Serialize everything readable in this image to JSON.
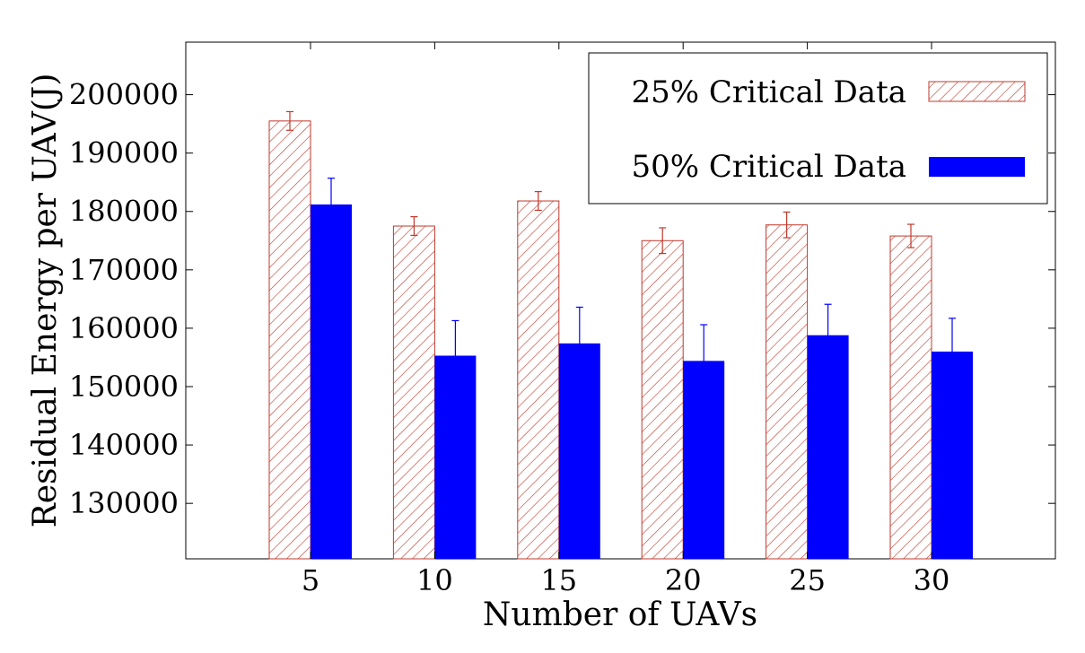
{
  "chart_data": {
    "type": "bar",
    "title": "",
    "xlabel": "Number of UAVs",
    "ylabel": "Residual Energy per UAV(J)",
    "categories": [
      "5",
      "10",
      "15",
      "20",
      "25",
      "30"
    ],
    "ylim": [
      120500,
      209000
    ],
    "yticks": [
      "130000",
      "140000",
      "150000",
      "160000",
      "170000",
      "180000",
      "190000",
      "200000"
    ],
    "grid": false,
    "legend_position": "top-right",
    "series": [
      {
        "name": "25% Critical Data",
        "style": "hatched",
        "color": "#c0392b",
        "values": [
          195500,
          177500,
          181800,
          175000,
          177700,
          175800
        ],
        "errors": [
          1600,
          1600,
          1600,
          2200,
          2200,
          2000
        ]
      },
      {
        "name": "50% Critical Data",
        "style": "solid",
        "color": "#0000ff",
        "values": [
          181200,
          155300,
          157400,
          154400,
          158800,
          156000
        ],
        "errors": [
          4500,
          6000,
          6200,
          6200,
          5300,
          5700
        ]
      }
    ]
  }
}
